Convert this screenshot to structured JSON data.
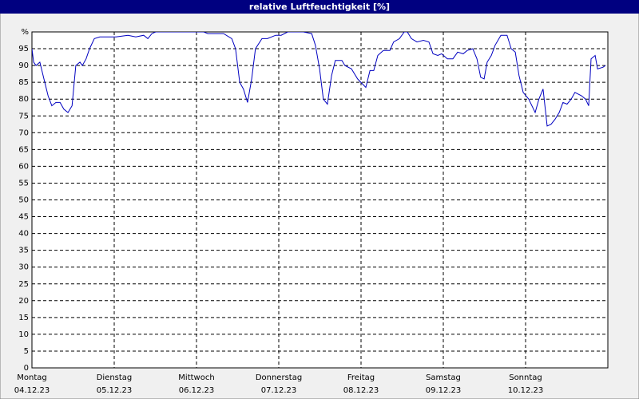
{
  "chart_data": {
    "type": "line",
    "title": "relative Luftfeuchtigkeit [%]",
    "xlim": [
      0,
      168
    ],
    "ylim": [
      0,
      100
    ],
    "yticks": [
      0,
      5,
      10,
      15,
      20,
      25,
      30,
      35,
      40,
      45,
      50,
      55,
      60,
      65,
      70,
      75,
      80,
      85,
      90,
      95,
      {
        "value": 100,
        "label": "%"
      }
    ],
    "xticks": [
      {
        "value": 0,
        "label": [
          "Montag",
          "04.12.23"
        ]
      },
      {
        "value": 24,
        "label": [
          "Dienstag",
          "05.12.23"
        ]
      },
      {
        "value": 48,
        "label": [
          "Mittwoch",
          "06.12.23"
        ]
      },
      {
        "value": 72,
        "label": [
          "Donnerstag",
          "07.12.23"
        ]
      },
      {
        "value": 96,
        "label": [
          "Freitag",
          "08.12.23"
        ]
      },
      {
        "value": 120,
        "label": [
          "Samstag",
          "09.12.23"
        ]
      },
      {
        "value": 144,
        "label": [
          "Sonntag",
          "10.12.23"
        ]
      }
    ],
    "grid": true,
    "series": [
      {
        "color": "#0000c0",
        "x": [
          0,
          0.5,
          1.2,
          2.3,
          3.5,
          4.7,
          5.8,
          7,
          8.2,
          9.3,
          10.5,
          11.7,
          12.8,
          14,
          14.7,
          15.8,
          16.8,
          18.2,
          19.8,
          22.1,
          24.5,
          28,
          30.3,
          32.6,
          33.8,
          35,
          36.1,
          37.3,
          50.1,
          51.3,
          55.9,
          58.3,
          59.4,
          60.6,
          61.7,
          62.9,
          64.1,
          65.2,
          67.1,
          68.7,
          71.1,
          72.7,
          74.6,
          79.2,
          81.6,
          82.7,
          83.9,
          85,
          86.2,
          87.4,
          88.5,
          90.4,
          91.3,
          93.2,
          95,
          97.4,
          98.6,
          99.7,
          100.9,
          102.5,
          104.4,
          105.5,
          107.2,
          108.6,
          109.5,
          110.7,
          112.3,
          114.2,
          115.8,
          117,
          118.4,
          119.5,
          121.2,
          122.8,
          124.2,
          125.8,
          127,
          128.6,
          129.8,
          130.9,
          131.9,
          132.8,
          134,
          135.1,
          136.8,
          138.6,
          139.8,
          141,
          142.1,
          143.3,
          144.9,
          146.8,
          147.9,
          149.1,
          150.3,
          151.4,
          152.6,
          153.8,
          154.9,
          156.1,
          157.3,
          158.4,
          160.3,
          161.5,
          162.4,
          163.1,
          164.3,
          165,
          166.6,
          167.3
        ],
        "values": [
          95,
          91,
          90,
          91,
          86,
          81,
          78,
          79,
          79,
          77,
          76,
          78,
          90,
          91,
          90,
          92,
          95,
          98,
          98.5,
          98.5,
          98.5,
          99,
          98.5,
          99,
          98,
          99.5,
          100,
          100,
          100,
          99.5,
          99.5,
          98,
          95,
          85,
          83,
          79,
          86,
          95,
          98,
          98,
          99,
          99,
          100,
          100,
          99.5,
          96,
          89,
          80,
          78.5,
          87,
          91.5,
          91.5,
          90,
          89,
          86,
          83.5,
          88.5,
          88.5,
          93,
          94.5,
          94.5,
          97,
          98,
          100,
          100,
          98,
          97,
          97.5,
          97,
          93.5,
          93,
          93.5,
          92,
          92,
          94,
          93.5,
          94.5,
          95,
          92,
          86.5,
          86,
          91,
          93,
          96,
          99,
          99,
          95,
          94,
          87,
          82,
          80,
          76,
          80,
          83,
          72,
          72.5,
          74,
          76,
          79,
          78.5,
          80,
          82,
          81,
          80,
          78,
          92,
          93,
          89,
          89.5,
          90
        ]
      }
    ]
  }
}
